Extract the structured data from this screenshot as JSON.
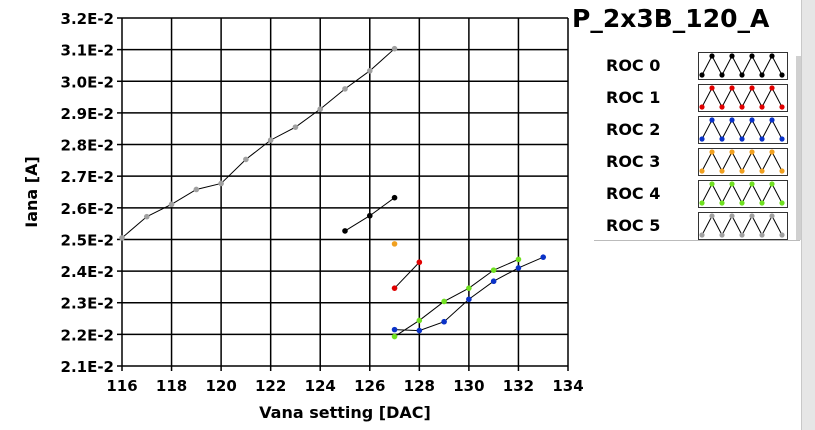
{
  "chart_data": {
    "type": "line",
    "title": "P_2x3B_120_A",
    "xlabel": "Vana setting [DAC]",
    "ylabel": "Iana [A]",
    "xlim": [
      116,
      134
    ],
    "ylim": [
      0.021,
      0.032
    ],
    "xticks": [
      "116",
      "118",
      "120",
      "122",
      "124",
      "126",
      "128",
      "130",
      "132",
      "134"
    ],
    "xtick_values": [
      116,
      118,
      120,
      122,
      124,
      126,
      128,
      130,
      132,
      134
    ],
    "yticks": [
      "2.1E-2",
      "2.2E-2",
      "2.3E-2",
      "2.4E-2",
      "2.5E-2",
      "2.6E-2",
      "2.7E-2",
      "2.8E-2",
      "2.9E-2",
      "3.0E-2",
      "3.1E-2",
      "3.2E-2"
    ],
    "ytick_values": [
      0.021,
      0.022,
      0.023,
      0.024,
      0.025,
      0.026,
      0.027,
      0.028,
      0.029,
      0.03,
      0.031,
      0.032
    ],
    "grid": true,
    "legend_position": "right",
    "series": [
      {
        "name": "ROC 0",
        "color": "#000000",
        "x": [
          125,
          126,
          127
        ],
        "y": [
          0.02527,
          0.02575,
          0.02632
        ]
      },
      {
        "name": "ROC 1",
        "color": "#e00000",
        "x": [
          127,
          128
        ],
        "y": [
          0.02346,
          0.02428
        ]
      },
      {
        "name": "ROC 2",
        "color": "#0a32c8",
        "x": [
          127,
          128,
          129,
          130,
          131,
          132,
          133
        ],
        "y": [
          0.02215,
          0.02212,
          0.0224,
          0.02311,
          0.02368,
          0.0241,
          0.02444
        ]
      },
      {
        "name": "ROC 3",
        "color": "#f0a020",
        "x": [
          127
        ],
        "y": [
          0.02486
        ]
      },
      {
        "name": "ROC 4",
        "color": "#70e020",
        "x": [
          127,
          128,
          129,
          130,
          131,
          132
        ],
        "y": [
          0.02193,
          0.02244,
          0.02304,
          0.02346,
          0.02403,
          0.02437
        ]
      },
      {
        "name": "ROC 5",
        "color": "#a0a0a0",
        "x": [
          116,
          117,
          118,
          119,
          120,
          121,
          122,
          123,
          124,
          125,
          126,
          127
        ],
        "y": [
          0.02505,
          0.02572,
          0.02611,
          0.02658,
          0.02677,
          0.02753,
          0.02814,
          0.02855,
          0.02912,
          0.02976,
          0.03033,
          0.03103
        ]
      }
    ]
  }
}
